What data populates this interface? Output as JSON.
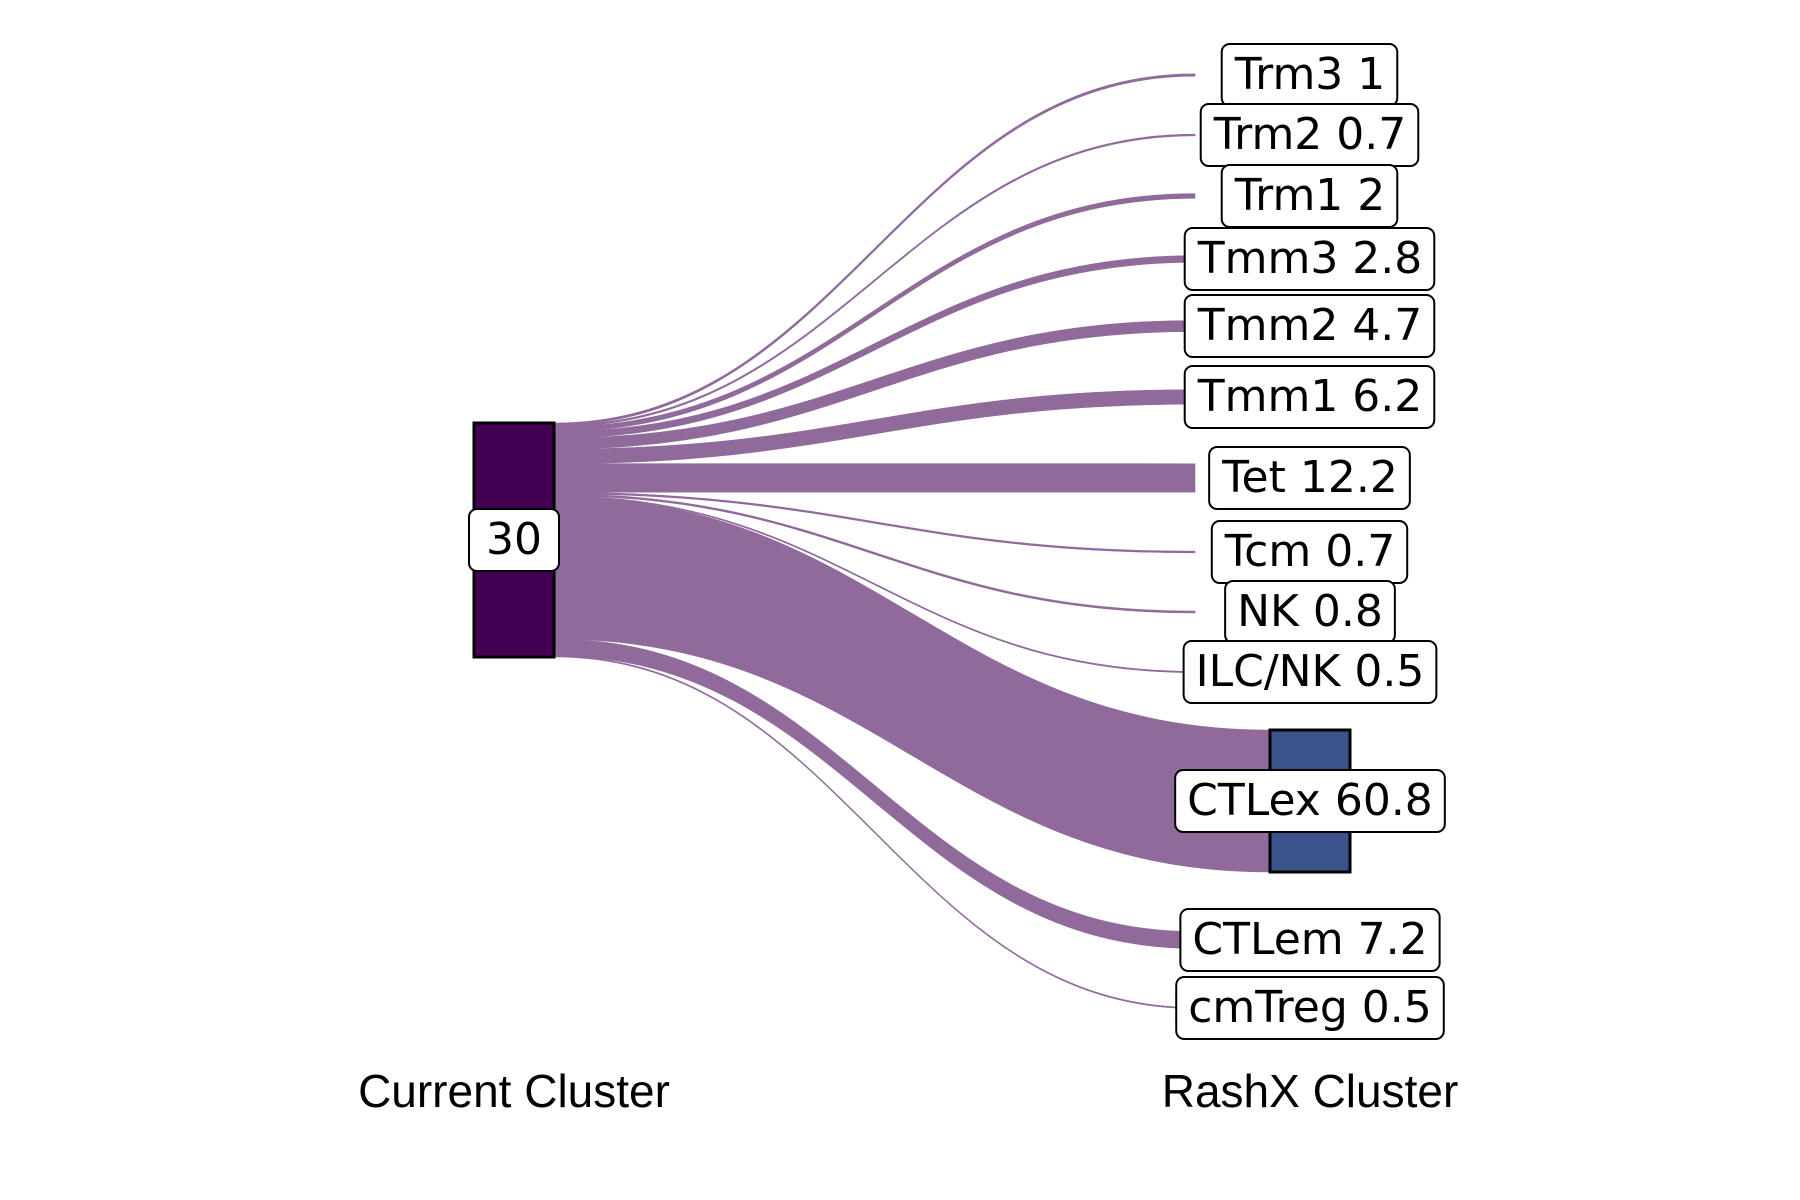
{
  "chart_data": {
    "type": "sankey",
    "source": {
      "label": "30",
      "color": "#440154"
    },
    "targets": [
      {
        "label": "Trm3 1",
        "name": "Trm3",
        "value": 1
      },
      {
        "label": "Trm2 0.7",
        "name": "Trm2",
        "value": 0.7
      },
      {
        "label": "Trm1 2",
        "name": "Trm1",
        "value": 2
      },
      {
        "label": "Tmm3 2.8",
        "name": "Tmm3",
        "value": 2.8
      },
      {
        "label": "Tmm2 4.7",
        "name": "Tmm2",
        "value": 4.7
      },
      {
        "label": "Tmm1 6.2",
        "name": "Tmm1",
        "value": 6.2
      },
      {
        "label": "Tet 12.2",
        "name": "Tet",
        "value": 12.2
      },
      {
        "label": "Tcm 0.7",
        "name": "Tcm",
        "value": 0.7
      },
      {
        "label": "NK 0.8",
        "name": "NK",
        "value": 0.8
      },
      {
        "label": "ILC/NK 0.5",
        "name": "ILC/NK",
        "value": 0.5
      },
      {
        "label": "CTLex 60.8",
        "name": "CTLex",
        "value": 60.8,
        "color": "#3b528b"
      },
      {
        "label": "CTLem 7.2",
        "name": "CTLem",
        "value": 7.2
      },
      {
        "label": "cmTreg 0.5",
        "name": "cmTreg",
        "value": 0.5
      }
    ],
    "link_color": "#8f6a9b",
    "xlabels": {
      "left": "Current Cluster",
      "right": "RashX Cluster"
    }
  }
}
